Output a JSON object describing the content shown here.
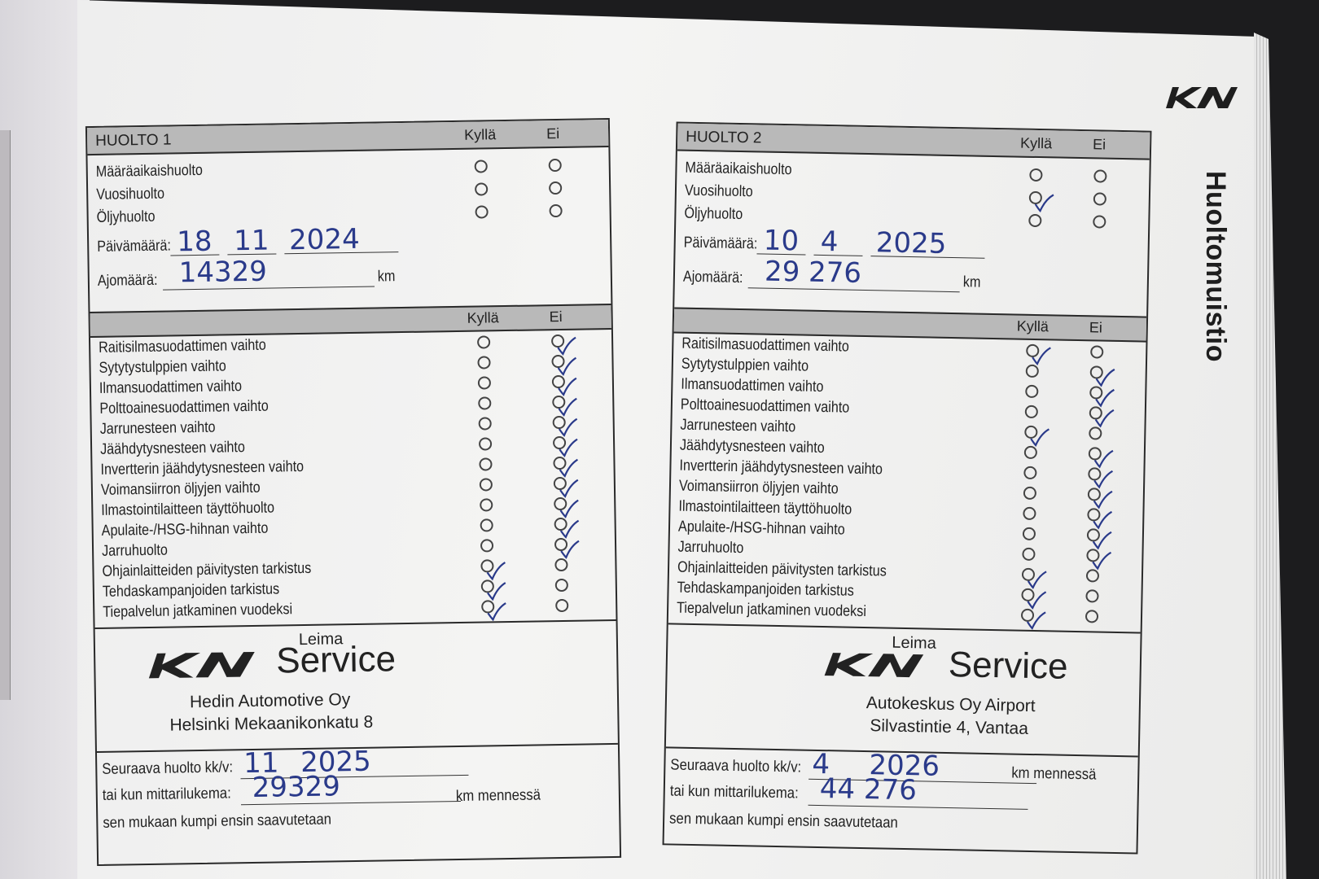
{
  "brand": {
    "logo": "KIA",
    "side_title": "Huoltomuistio"
  },
  "columns": {
    "yes": "Kyllä",
    "no": "Ei"
  },
  "services": [
    {
      "title": "HUOLTO 1",
      "type_items": [
        {
          "label": "Määräaikaishuolto",
          "checked": null
        },
        {
          "label": "Vuosihuolto",
          "checked": null
        },
        {
          "label": "Öljyhuolto",
          "checked": null
        }
      ],
      "date_label": "Päivämäärä:",
      "date": {
        "day": "18",
        "month": "11",
        "year": "2024"
      },
      "mileage_label": "Ajomäärä:",
      "mileage": "14329",
      "km": "km",
      "tasks": [
        {
          "label": "Raitisilmasuodattimen vaihto",
          "checked": "no"
        },
        {
          "label": "Sytytystulppien vaihto",
          "checked": "no"
        },
        {
          "label": "Ilmansuodattimen vaihto",
          "checked": "no"
        },
        {
          "label": "Polttoainesuodattimen vaihto",
          "checked": "no"
        },
        {
          "label": "Jarrunesteen vaihto",
          "checked": "no"
        },
        {
          "label": "Jäähdytysnesteen vaihto",
          "checked": "no"
        },
        {
          "label": "Invertterin jäähdytysnesteen vaihto",
          "checked": "no"
        },
        {
          "label": "Voimansiirron öljyjen vaihto",
          "checked": "no"
        },
        {
          "label": "Ilmastointilaitteen täyttöhuolto",
          "checked": "no"
        },
        {
          "label": "Apulaite-/HSG-hihnan vaihto",
          "checked": "no"
        },
        {
          "label": "Jarruhuolto",
          "checked": "no"
        },
        {
          "label": "Ohjainlaitteiden päivitysten tarkistus",
          "checked": "yes"
        },
        {
          "label": "Tehdaskampanjoiden tarkistus",
          "checked": "yes"
        },
        {
          "label": "Tiepalvelun jatkaminen vuodeksi",
          "checked": "yes"
        }
      ],
      "stamp": {
        "leima": "Leima",
        "logo": "KIA",
        "service": "Service",
        "line1": "Hedin Automotive Oy",
        "line2": "Helsinki Mekaanikonkatu 8"
      },
      "next_label": "Seuraava huolto kk/v:",
      "next": {
        "month": "11",
        "year": "2025"
      },
      "odo_label": "tai kun mittarilukema:",
      "odo": "29329",
      "km_by": "km mennessä",
      "footer": "sen mukaan kumpi ensin saavutetaan"
    },
    {
      "title": "HUOLTO 2",
      "type_items": [
        {
          "label": "Määräaikaishuolto",
          "checked": null
        },
        {
          "label": "Vuosihuolto",
          "checked": "yes"
        },
        {
          "label": "Öljyhuolto",
          "checked": null
        }
      ],
      "date_label": "Päivämäärä:",
      "date": {
        "day": "10",
        "month": "4",
        "year": "2025"
      },
      "mileage_label": "Ajomäärä:",
      "mileage": "29 276",
      "km": "km",
      "tasks": [
        {
          "label": "Raitisilmasuodattimen vaihto",
          "checked": "yes"
        },
        {
          "label": "Sytytystulppien vaihto",
          "checked": "no"
        },
        {
          "label": "Ilmansuodattimen vaihto",
          "checked": "no"
        },
        {
          "label": "Polttoainesuodattimen vaihto",
          "checked": "no"
        },
        {
          "label": "Jarrunesteen vaihto",
          "checked": "yes"
        },
        {
          "label": "Jäähdytysnesteen vaihto",
          "checked": "no"
        },
        {
          "label": "Invertterin jäähdytysnesteen vaihto",
          "checked": "no"
        },
        {
          "label": "Voimansiirron öljyjen vaihto",
          "checked": "no"
        },
        {
          "label": "Ilmastointilaitteen täyttöhuolto",
          "checked": "no"
        },
        {
          "label": "Apulaite-/HSG-hihnan vaihto",
          "checked": "no"
        },
        {
          "label": "Jarruhuolto",
          "checked": "no"
        },
        {
          "label": "Ohjainlaitteiden päivitysten tarkistus",
          "checked": "yes"
        },
        {
          "label": "Tehdaskampanjoiden tarkistus",
          "checked": "yes"
        },
        {
          "label": "Tiepalvelun jatkaminen vuodeksi",
          "checked": "yes"
        }
      ],
      "stamp": {
        "leima": "Leima",
        "logo": "KIA",
        "service": "Service",
        "line1": "Autokeskus Oy Airport",
        "line2": "Silvastintie 4, Vantaa"
      },
      "next_label": "Seuraava huolto kk/v:",
      "next": {
        "month": "4",
        "year": "2026"
      },
      "odo_label": "tai kun mittarilukema:",
      "odo": "44 276",
      "km_by": "km mennessä",
      "footer": "sen mukaan kumpi ensin saavutetaan"
    }
  ]
}
